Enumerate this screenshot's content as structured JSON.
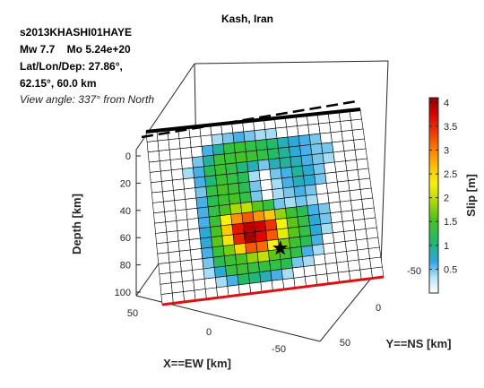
{
  "chart_data": {
    "type": "heatmap",
    "title": "Kash, Iran",
    "event_info": {
      "event_id": "s2013KHASHI01HAYE",
      "magnitude": "Mw 7.7    Mo 5.24e+20",
      "location_line1": "Lat/Lon/Dep: 27.86°,",
      "location_line2": "62.15°, 60.0 km",
      "view_angle": "View angle: 337° from North"
    },
    "xlabel": "X==EW [km]",
    "ylabel": "Y==NS [km]",
    "zlabel": "Depth [km]",
    "colorbar_label": "Slip [m]",
    "x_ticks": [
      "50",
      "0",
      "-50"
    ],
    "y_ticks": [
      "-50",
      "0",
      "50"
    ],
    "z_ticks": [
      "0",
      "20",
      "40",
      "60",
      "80",
      "100"
    ],
    "colorbar_ticks": [
      "0.5",
      "1",
      "1.5",
      "2",
      "2.5",
      "3",
      "3.5",
      "4"
    ],
    "color_range": [
      0,
      4.1
    ],
    "grid_rows": 17,
    "grid_cols": 20,
    "hypocenter_cell": [
      12.9,
      11.1
    ],
    "slip_m": [
      [
        0,
        0,
        0,
        0,
        0,
        0,
        0,
        0,
        0,
        0,
        0,
        0,
        0,
        0,
        0,
        0,
        0,
        0,
        0,
        0
      ],
      [
        0,
        0,
        0,
        0,
        0,
        0,
        0.4,
        0.5,
        0.6,
        0.5,
        0.4,
        0.4,
        0,
        0,
        0,
        0,
        0,
        0,
        0,
        0
      ],
      [
        0,
        0,
        0,
        0,
        0,
        0.6,
        0.9,
        1.3,
        1.4,
        1.3,
        1.2,
        1.1,
        0.8,
        0.7,
        0.6,
        0.5,
        0,
        0,
        0,
        0
      ],
      [
        0,
        0,
        0,
        0,
        0.5,
        0.9,
        1.4,
        1.4,
        1.5,
        1.4,
        1.3,
        1.1,
        0.9,
        0.7,
        0.6,
        0.5,
        0.5,
        0,
        0,
        0
      ],
      [
        0,
        0,
        0,
        0.4,
        0.6,
        1.2,
        1.4,
        1.3,
        1.0,
        0.8,
        0.5,
        0.8,
        0.9,
        0.8,
        0.6,
        0.5,
        0.4,
        0,
        0,
        0
      ],
      [
        0,
        0,
        0,
        0,
        0.6,
        1.0,
        1.4,
        1.3,
        1.2,
        0.4,
        0,
        0.5,
        0.6,
        0.9,
        0.7,
        0.5,
        0,
        0,
        0,
        0
      ],
      [
        0,
        0,
        0,
        0,
        0.5,
        1.3,
        1.5,
        1.4,
        1.2,
        0.5,
        0,
        0.4,
        0.6,
        0.8,
        0.7,
        0.5,
        0,
        0,
        0,
        0
      ],
      [
        0,
        0,
        0,
        0,
        0.6,
        1.2,
        1.4,
        1.5,
        1.3,
        0.5,
        0,
        0.4,
        0.5,
        0.6,
        0.5,
        0,
        0,
        0,
        0,
        0
      ],
      [
        0,
        0,
        0,
        0,
        0.6,
        1.3,
        1.5,
        1.9,
        2.0,
        1.6,
        1.3,
        0.5,
        0.4,
        0.5,
        0.4,
        0,
        0,
        0,
        0,
        0
      ],
      [
        0,
        0,
        0,
        0,
        0.6,
        1.4,
        2.3,
        2.9,
        3.2,
        2.9,
        2.6,
        1.8,
        1.4,
        1.2,
        0.6,
        0.5,
        0,
        0,
        0,
        0
      ],
      [
        0,
        0,
        0,
        0,
        0.7,
        1.5,
        2.6,
        3.6,
        3.9,
        3.8,
        3.4,
        2.3,
        1.6,
        1.3,
        0.7,
        0.5,
        0,
        0,
        0,
        0
      ],
      [
        0,
        0,
        0,
        0,
        0.7,
        1.6,
        2.4,
        3.5,
        4.0,
        3.7,
        3.2,
        2.2,
        1.6,
        1.3,
        0.7,
        0.4,
        0,
        0,
        0,
        0
      ],
      [
        0,
        0,
        0,
        0,
        0.6,
        1.4,
        1.7,
        2.5,
        3.2,
        3.1,
        2.3,
        1.7,
        1.4,
        1.2,
        0.6,
        0,
        0,
        0,
        0,
        0
      ],
      [
        0,
        0,
        0,
        0,
        0.5,
        1.2,
        1.4,
        1.5,
        1.8,
        2.0,
        1.6,
        1.4,
        1.3,
        0.6,
        0.4,
        0,
        0,
        0,
        0,
        0
      ],
      [
        0,
        0,
        0,
        0,
        0.4,
        0.7,
        1.3,
        1.4,
        1.3,
        1.3,
        1.3,
        1.2,
        0.5,
        0.4,
        0,
        0,
        0,
        0,
        0,
        0
      ],
      [
        0,
        0,
        0,
        0,
        0,
        0.4,
        0.6,
        1.1,
        1.0,
        0.8,
        0.6,
        0.4,
        0,
        0,
        0,
        0,
        0,
        0,
        0,
        0
      ],
      [
        0,
        0,
        0,
        0,
        0,
        0,
        0,
        0,
        0,
        0,
        0,
        0,
        0,
        0,
        0,
        0,
        0,
        0,
        0,
        0
      ]
    ]
  }
}
